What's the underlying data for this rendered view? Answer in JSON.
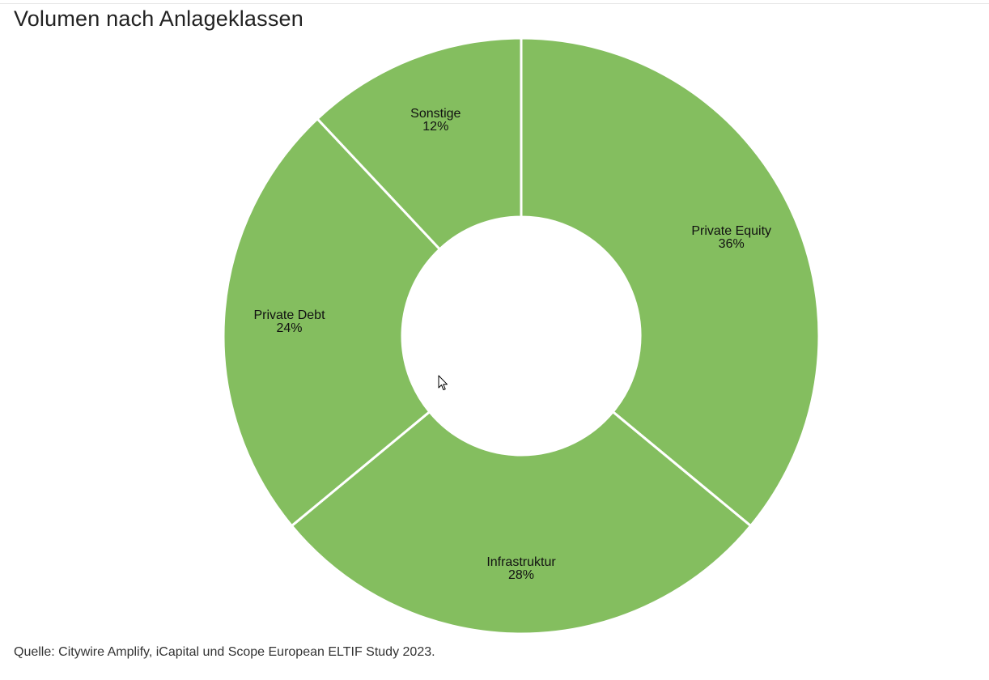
{
  "chart_data": {
    "type": "pie",
    "style": "donut",
    "title": "Volumen nach Anlageklassen",
    "categories": [
      "Private Equity",
      "Infrastruktur",
      "Private Debt",
      "Sonstige"
    ],
    "values": [
      36,
      28,
      24,
      12
    ],
    "value_labels": [
      "36%",
      "28%",
      "24%",
      "12%"
    ],
    "start": "top, clockwise",
    "slice_color": "#84be5f",
    "separator_color": "#ffffff",
    "legend": "none (labels on slices)"
  },
  "footer": {
    "source": "Quelle: Citywire Amplify, iCapital und Scope European ELTIF Study 2023."
  }
}
